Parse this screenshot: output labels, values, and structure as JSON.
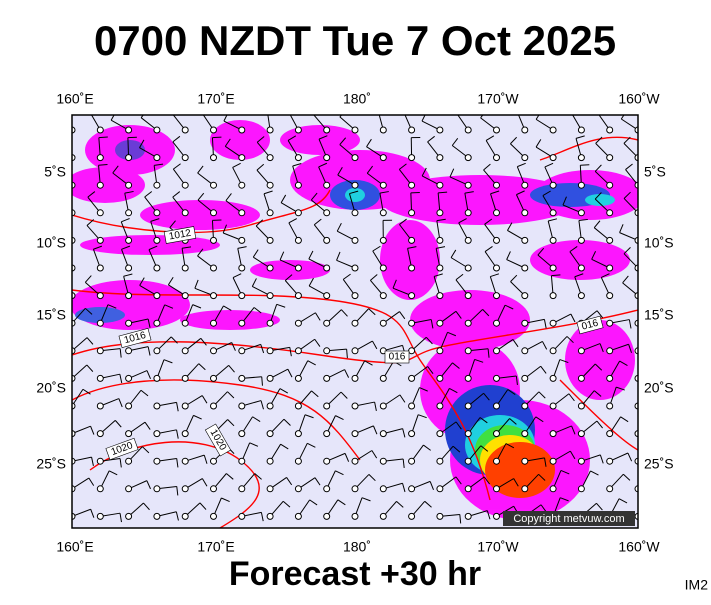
{
  "header": {
    "title": "0700 NZDT Tue 7 Oct 2025"
  },
  "axes": {
    "top_labels": [
      "160˚E",
      "170˚E",
      "180˚",
      "170˚W",
      "160˚W"
    ],
    "bottom_labels": [
      "160˚E",
      "170˚E",
      "180˚",
      "170˚W",
      "160˚W"
    ],
    "left_labels": [
      "5˚S",
      "10˚S",
      "15˚S",
      "20˚S",
      "25˚S"
    ],
    "right_labels": [
      "5˚S",
      "10˚S",
      "15˚S",
      "20˚S",
      "25˚S"
    ]
  },
  "isobar_labels": [
    "1012",
    "1016",
    "016",
    "016",
    "1020",
    "1020"
  ],
  "copyright": "Copyright metvuw.com",
  "footer": {
    "forecast": "Forecast +30 hr",
    "id": "IM2"
  }
}
